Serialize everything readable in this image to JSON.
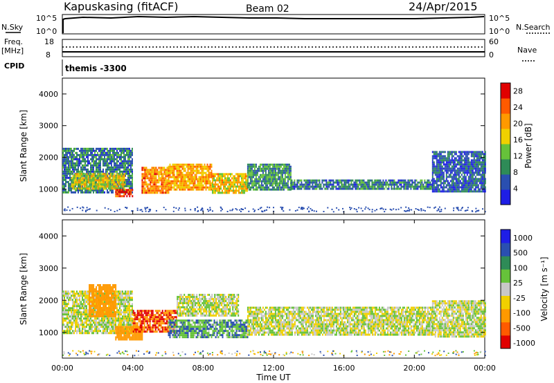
{
  "header": {
    "title": "Kapuskasing (fitACF)",
    "beam": "Beam 02",
    "date": "24/Apr/2015"
  },
  "top_panels": {
    "nsky_label": "N.Sky",
    "nsky_ticks": [
      "10^5",
      "10^0"
    ],
    "nsearch_label": "N.Search",
    "nsearch_ticks": [
      "10^5",
      "10^0"
    ],
    "freq_label_1": "Freq.",
    "freq_label_2": "[MHz]",
    "freq_ticks": [
      "18",
      "8"
    ],
    "nave_label": "Nave",
    "nave_ticks": [
      "60",
      "0"
    ],
    "cpid_label": "CPID",
    "cpid_value": "themis -3300"
  },
  "colors": {
    "power_scale": [
      "#1e1ee6",
      "#2a4fb0",
      "#2e8b57",
      "#66c23a",
      "#f0d000",
      "#ff9900",
      "#ff5a00",
      "#e00000"
    ],
    "velocity_scale": [
      "#1e1ee6",
      "#2a4fb0",
      "#2e8b57",
      "#66c23a",
      "#c8c8c8",
      "#f0d000",
      "#ff9900",
      "#ff5a00",
      "#e00000"
    ]
  },
  "chart_data": [
    {
      "type": "heatmap",
      "panel": "power",
      "ylabel": "Slant Range [km]",
      "yticks": [
        "1000",
        "2000",
        "3000",
        "4000"
      ],
      "ylim": [
        200,
        4500
      ],
      "xlim": [
        0,
        24
      ],
      "colorbar_label": "Power [dB]",
      "colorbar_ticks": [
        "4",
        "8",
        "12",
        "16",
        "20",
        "24",
        "28"
      ],
      "color_range": [
        0,
        30
      ],
      "regions": [
        {
          "x": [
            0.0,
            4.0
          ],
          "y": [
            900,
            2300
          ],
          "value": 8
        },
        {
          "x": [
            0.5,
            3.5
          ],
          "y": [
            1000,
            1500
          ],
          "value": 16
        },
        {
          "x": [
            3.0,
            4.0
          ],
          "y": [
            750,
            1000
          ],
          "value": 26
        },
        {
          "x": [
            4.5,
            6.0
          ],
          "y": [
            900,
            1700
          ],
          "value": 22
        },
        {
          "x": [
            6.0,
            8.5
          ],
          "y": [
            1000,
            1800
          ],
          "value": 20
        },
        {
          "x": [
            8.5,
            10.5
          ],
          "y": [
            850,
            1500
          ],
          "value": 18
        },
        {
          "x": [
            10.5,
            13.0
          ],
          "y": [
            1000,
            1800
          ],
          "value": 10
        },
        {
          "x": [
            13.0,
            21.0
          ],
          "y": [
            1000,
            1300
          ],
          "value": 8
        },
        {
          "x": [
            21.0,
            24.0
          ],
          "y": [
            900,
            2200
          ],
          "value": 6
        }
      ]
    },
    {
      "type": "heatmap",
      "panel": "velocity",
      "ylabel": "Slant Range [km]",
      "yticks": [
        "1000",
        "2000",
        "3000",
        "4000"
      ],
      "ylim": [
        200,
        4500
      ],
      "xlim": [
        0,
        24
      ],
      "xticks": [
        "00:00",
        "04:00",
        "08:00",
        "12:00",
        "16:00",
        "20:00",
        "00:00"
      ],
      "xlabel": "Time UT",
      "colorbar_label": "Velocity [m s⁻¹]",
      "colorbar_ticks": [
        "1000",
        "500",
        "100",
        "25",
        "-25",
        "-100",
        "-500",
        "-1000"
      ],
      "regions": [
        {
          "x": [
            0.0,
            4.0
          ],
          "y": [
            1000,
            2300
          ],
          "value": 0
        },
        {
          "x": [
            1.5,
            3.0
          ],
          "y": [
            1500,
            2500
          ],
          "value": -400
        },
        {
          "x": [
            3.0,
            4.5
          ],
          "y": [
            750,
            1200
          ],
          "value": -300
        },
        {
          "x": [
            4.0,
            6.5
          ],
          "y": [
            1000,
            1700
          ],
          "value": -500
        },
        {
          "x": [
            6.0,
            10.5
          ],
          "y": [
            850,
            1400
          ],
          "value": 80
        },
        {
          "x": [
            6.5,
            10.0
          ],
          "y": [
            1500,
            2200
          ],
          "value": 0
        },
        {
          "x": [
            10.5,
            21.0
          ],
          "y": [
            900,
            1800
          ],
          "value": 0
        },
        {
          "x": [
            21.0,
            24.0
          ],
          "y": [
            900,
            2000
          ],
          "value": 0
        }
      ]
    }
  ]
}
